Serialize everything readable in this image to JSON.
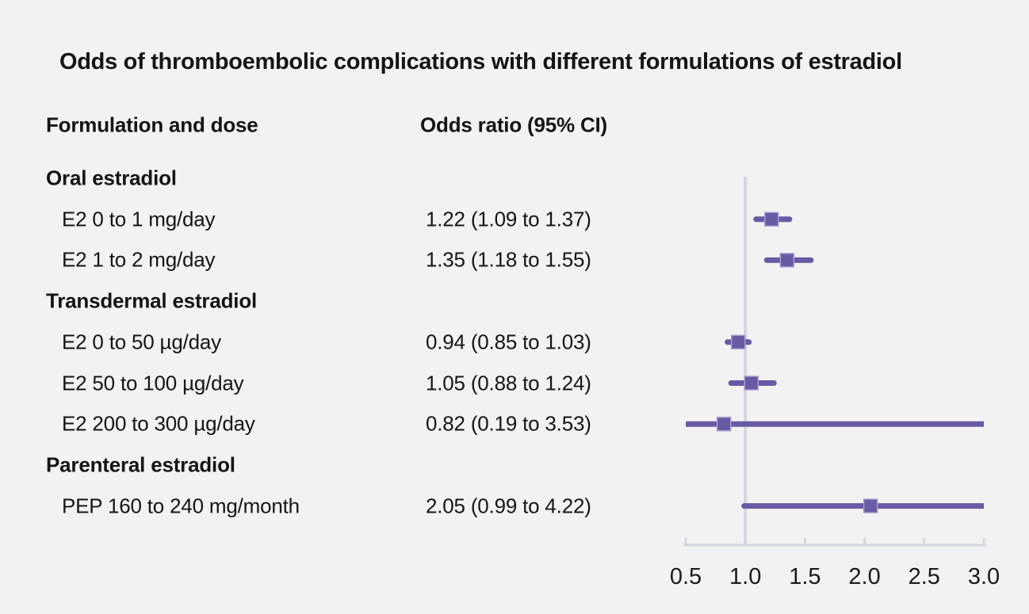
{
  "chart_data": {
    "type": "forest",
    "title": "Odds of thromboembolic complications with different formulations of estradiol",
    "columns": {
      "left": "Formulation and dose",
      "right": "Odds ratio (95% CI)"
    },
    "xlim": [
      0.5,
      3.0
    ],
    "x_ticks": [
      0.5,
      1.0,
      1.5,
      2.0,
      2.5,
      3.0
    ],
    "x_tick_labels": [
      "0.5",
      "1.0",
      "1.5",
      "2.0",
      "2.5",
      "3.0"
    ],
    "reference_line": 1.0,
    "rows": [
      {
        "kind": "group",
        "label": "Oral estradiol"
      },
      {
        "kind": "item",
        "label": "E2 0 to 1 mg/day",
        "estimate_text": "1.22 (1.09 to 1.37)",
        "or": 1.22,
        "ci_low": 1.09,
        "ci_high": 1.37
      },
      {
        "kind": "item",
        "label": "E2 1 to 2 mg/day",
        "estimate_text": "1.35 (1.18 to 1.55)",
        "or": 1.35,
        "ci_low": 1.18,
        "ci_high": 1.55
      },
      {
        "kind": "group",
        "label": "Transdermal estradiol"
      },
      {
        "kind": "item",
        "label": "E2 0 to 50 µg/day",
        "estimate_text": "0.94 (0.85 to 1.03)",
        "or": 0.94,
        "ci_low": 0.85,
        "ci_high": 1.03
      },
      {
        "kind": "item",
        "label": "E2 50 to 100 µg/day",
        "estimate_text": "1.05 (0.88 to 1.24)",
        "or": 1.05,
        "ci_low": 0.88,
        "ci_high": 1.24
      },
      {
        "kind": "item",
        "label": "E2 200 to 300 µg/day",
        "estimate_text": "0.82 (0.19 to 3.53)",
        "or": 0.82,
        "ci_low": 0.19,
        "ci_high": 3.53
      },
      {
        "kind": "group",
        "label": "Parenteral estradiol"
      },
      {
        "kind": "item",
        "label": "PEP 160 to 240 mg/month",
        "estimate_text": "2.05 (0.99 to 4.22)",
        "or": 2.05,
        "ci_low": 0.99,
        "ci_high": 4.22
      }
    ],
    "colors": {
      "background": "#f2f2f2",
      "text": "#151515",
      "tick_text": "#1a1a1a",
      "marker": "#6a59a3",
      "marker_edge": "#a89dd2",
      "grid": "#d2d6e0"
    },
    "legend": null,
    "grid": "reference-line-only"
  }
}
